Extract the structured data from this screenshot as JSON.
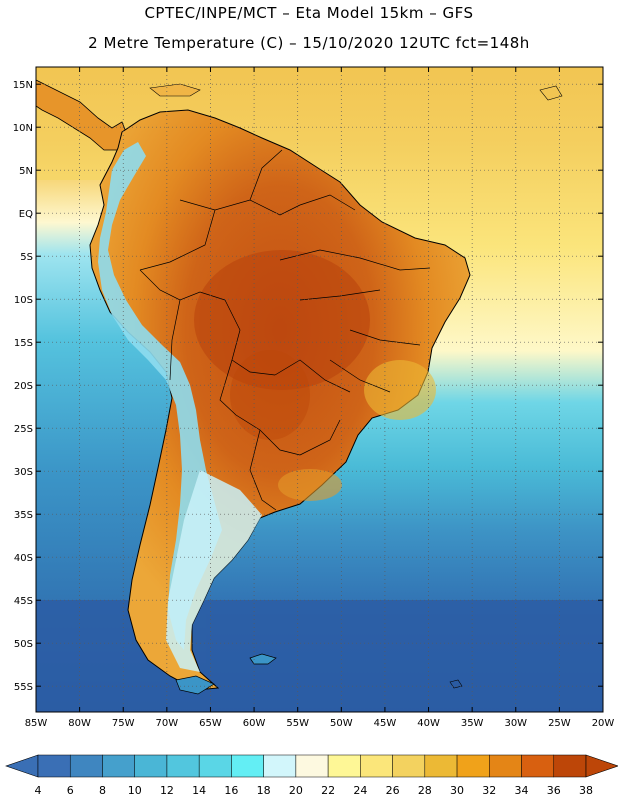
{
  "title": {
    "line1": "CPTEC/INPE/MCT –  Eta Model 15km – GFS",
    "line2": "2 Metre Temperature (C) – 15/10/2020 12UTC fct=148h"
  },
  "map": {
    "region": "South America",
    "lon_range": [
      -85,
      -20
    ],
    "lat_range": [
      -58,
      17
    ],
    "lat_labels": [
      "15N",
      "10N",
      "5N",
      "EQ",
      "5S",
      "10S",
      "15S",
      "20S",
      "25S",
      "30S",
      "35S",
      "40S",
      "45S",
      "50S",
      "55S"
    ],
    "lon_labels": [
      "85W",
      "80W",
      "75W",
      "70W",
      "65W",
      "60W",
      "55W",
      "50W",
      "45W",
      "40W",
      "35W",
      "30W",
      "25W",
      "20W"
    ]
  },
  "colorbar": {
    "labels": [
      "4",
      "6",
      "8",
      "10",
      "12",
      "14",
      "16",
      "18",
      "20",
      "22",
      "24",
      "26",
      "28",
      "30",
      "32",
      "34",
      "36",
      "38"
    ],
    "colors": [
      "#3a6fb5",
      "#3f86c0",
      "#45a0cc",
      "#4ab6d6",
      "#52c6de",
      "#5ad6e6",
      "#63eef4",
      "#d2f6fb",
      "#fdf9e0",
      "#fef796",
      "#fbe67a",
      "#f3d25f",
      "#ecb935",
      "#f0a21a",
      "#e48516",
      "#d86010",
      "#bd4608"
    ],
    "low_color": "#3a6fb5",
    "high_color": "#bd4608"
  },
  "colors": {
    "land_hot": "#c65414",
    "land_warm": "#ea9122",
    "ocean_cold": "#2c5ea4",
    "andes_cold": "#8fdfef"
  }
}
